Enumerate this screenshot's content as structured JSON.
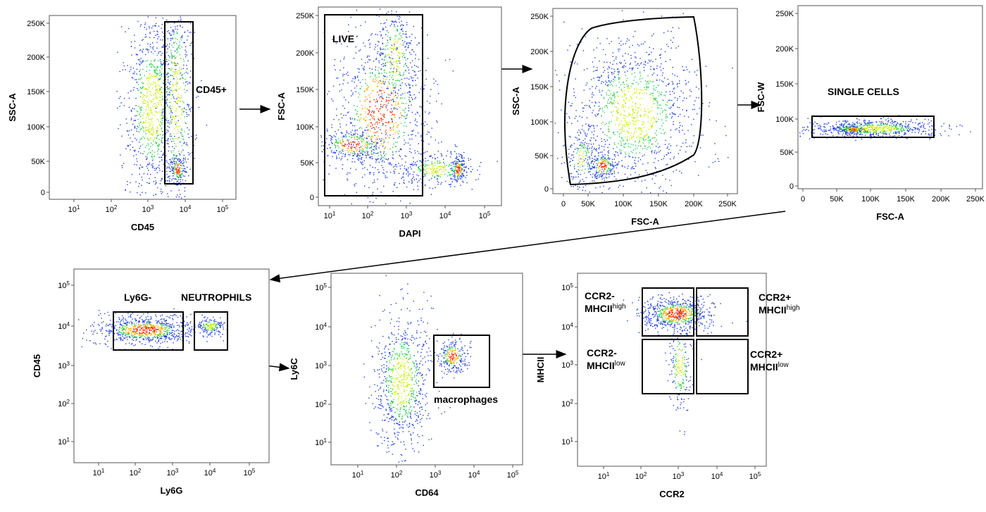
{
  "panels": [
    {
      "x_label": "CD45",
      "y_label": "SSC-A",
      "x_ticks": [
        {
          "base": "10",
          "exp": "1"
        },
        {
          "base": "10",
          "exp": "2"
        },
        {
          "base": "10",
          "exp": "3"
        },
        {
          "base": "10",
          "exp": "4"
        },
        {
          "base": "10",
          "exp": "5"
        }
      ],
      "y_ticks": [
        "250K",
        "200K",
        "150K",
        "100K",
        "50K",
        "0"
      ],
      "gates": [
        {
          "label": "CD45+"
        }
      ]
    },
    {
      "x_label": "DAPI",
      "y_label": "FSC-A",
      "x_ticks": [
        {
          "base": "10",
          "exp": "1"
        },
        {
          "base": "10",
          "exp": "2"
        },
        {
          "base": "10",
          "exp": "3"
        },
        {
          "base": "10",
          "exp": "4"
        },
        {
          "base": "10",
          "exp": "5"
        }
      ],
      "y_ticks": [
        "250K",
        "200K",
        "150K",
        "100K",
        "50K",
        "0"
      ],
      "gates": [
        {
          "label": "LIVE"
        }
      ]
    },
    {
      "x_label": "FSC-A",
      "y_label": "SSC-A",
      "x_ticks": [
        "0",
        "50K",
        "100K",
        "150K",
        "200K",
        "250K"
      ],
      "y_ticks": [
        "250K",
        "200K",
        "150K",
        "100K",
        "50K",
        "0"
      ],
      "gates": []
    },
    {
      "x_label": "FSC-A",
      "y_label": "FSC-W",
      "x_ticks": [
        "0",
        "50K",
        "100K",
        "150K",
        "200K",
        "250K"
      ],
      "y_ticks": [
        "250K",
        "200K",
        "150K",
        "100K",
        "50K",
        "0"
      ],
      "gates": [
        {
          "label": "SINGLE CELLS"
        }
      ]
    },
    {
      "x_label": "Ly6G",
      "y_label": "CD45",
      "x_ticks": [
        {
          "base": "10",
          "exp": "1"
        },
        {
          "base": "10",
          "exp": "2"
        },
        {
          "base": "10",
          "exp": "3"
        },
        {
          "base": "10",
          "exp": "4"
        },
        {
          "base": "10",
          "exp": "5"
        }
      ],
      "y_ticks": [
        {
          "base": "10",
          "exp": "5"
        },
        {
          "base": "10",
          "exp": "4"
        },
        {
          "base": "10",
          "exp": "3"
        },
        {
          "base": "10",
          "exp": "2"
        },
        {
          "base": "10",
          "exp": "1"
        }
      ],
      "gates": [
        {
          "label": "Ly6G-"
        },
        {
          "label": "NEUTROPHILS"
        }
      ]
    },
    {
      "x_label": "CD64",
      "y_label": "Ly6C",
      "x_ticks": [
        {
          "base": "10",
          "exp": "1"
        },
        {
          "base": "10",
          "exp": "2"
        },
        {
          "base": "10",
          "exp": "3"
        },
        {
          "base": "10",
          "exp": "4"
        },
        {
          "base": "10",
          "exp": "5"
        }
      ],
      "y_ticks": [
        {
          "base": "10",
          "exp": "5"
        },
        {
          "base": "10",
          "exp": "4"
        },
        {
          "base": "10",
          "exp": "3"
        },
        {
          "base": "10",
          "exp": "2"
        },
        {
          "base": "10",
          "exp": "1"
        }
      ],
      "gates": [
        {
          "label": "macrophages"
        }
      ]
    },
    {
      "x_label": "CCR2",
      "y_label": "MHCII",
      "x_ticks": [
        {
          "base": "10",
          "exp": "1"
        },
        {
          "base": "10",
          "exp": "2"
        },
        {
          "base": "10",
          "exp": "3"
        },
        {
          "base": "10",
          "exp": "4"
        },
        {
          "base": "10",
          "exp": "5"
        }
      ],
      "y_ticks": [
        {
          "base": "10",
          "exp": "5"
        },
        {
          "base": "10",
          "exp": "4"
        },
        {
          "base": "10",
          "exp": "3"
        },
        {
          "base": "10",
          "exp": "2"
        },
        {
          "base": "10",
          "exp": "1"
        }
      ],
      "gates": [
        {
          "label": "CCR2-",
          "label2": "MHCII",
          "label2_sup": "high"
        },
        {
          "label": "CCR2+",
          "label2": "MHCII",
          "label2_sup": "high"
        },
        {
          "label": "CCR2-",
          "label2": "MHCII",
          "label2_sup": "low"
        },
        {
          "label": "CCR2+",
          "label2": "MHCII",
          "label2_sup": "low"
        }
      ]
    }
  ]
}
